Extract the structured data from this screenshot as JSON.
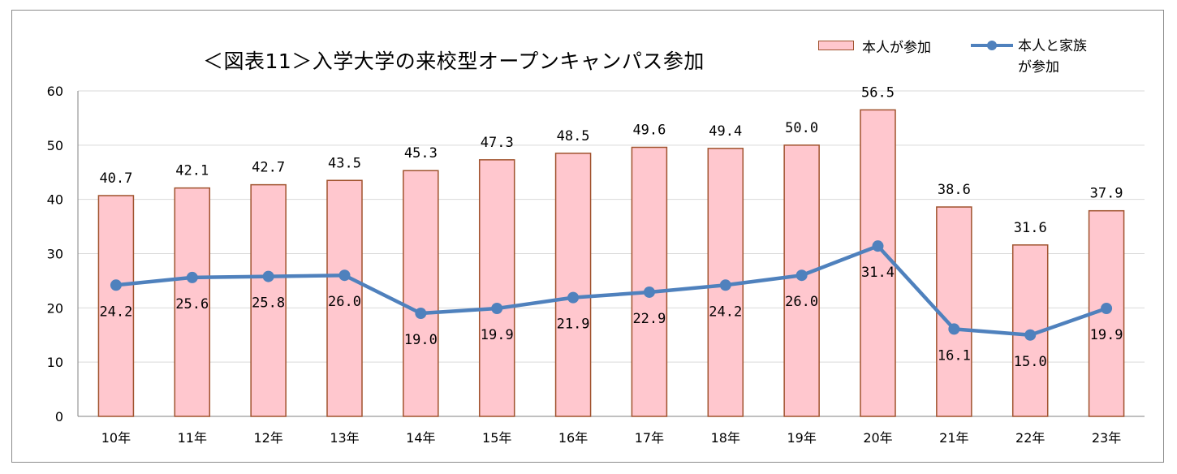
{
  "chart_data": {
    "type": "bar",
    "title": "＜図表11＞入学大学の来校型オープンキャンパス参加",
    "categories": [
      "10年",
      "11年",
      "12年",
      "13年",
      "14年",
      "15年",
      "16年",
      "17年",
      "18年",
      "19年",
      "20年",
      "21年",
      "22年",
      "23年"
    ],
    "series": [
      {
        "name": "本人が参加",
        "type": "bar",
        "values": [
          40.7,
          42.1,
          42.7,
          43.5,
          45.3,
          47.3,
          48.5,
          49.6,
          49.4,
          50.0,
          56.5,
          38.6,
          31.6,
          37.9
        ],
        "labels": [
          "40.7",
          "42.1",
          "42.7",
          "43.5",
          "45.3",
          "47.3",
          "48.5",
          "49.6",
          "49.4",
          "50.0",
          "56.5",
          "38.6",
          "31.6",
          "37.9"
        ]
      },
      {
        "name": "本人と家族が参加",
        "type": "line",
        "values": [
          24.2,
          25.6,
          25.8,
          26.0,
          19.0,
          19.9,
          21.9,
          22.9,
          24.2,
          26.0,
          31.4,
          16.1,
          15.0,
          19.9
        ],
        "labels": [
          "24.2",
          "25.6",
          "25.8",
          "26.0",
          "19.0",
          "19.9",
          "21.9",
          "22.9",
          "24.2",
          "26.0",
          "31.4",
          "16.1",
          "15.0",
          "19.9"
        ]
      }
    ],
    "ylim": [
      0,
      60
    ],
    "yticks": [
      "0",
      "10",
      "20",
      "30",
      "40",
      "50",
      "60"
    ],
    "grid": true,
    "legend_position": "top-right",
    "colors": {
      "bar_fill": "#ffc7ce",
      "bar_stroke": "#a0522d",
      "line": "#4f81bd",
      "grid": "#d9d9d9"
    }
  },
  "legend": {
    "bar_label": "本人が参加",
    "line_label_1": "本人と家族",
    "line_label_2": "が参加"
  }
}
